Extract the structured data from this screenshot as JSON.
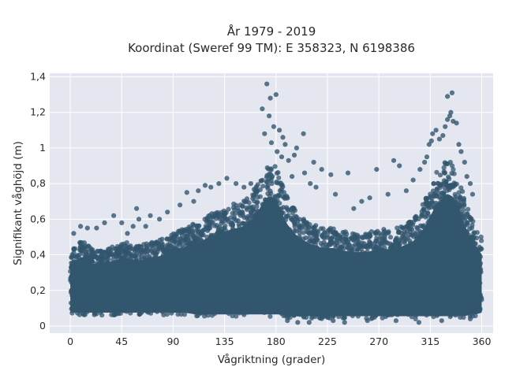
{
  "chart_data": {
    "type": "scatter",
    "title_line1": "År 1979 - 2019",
    "title_line2": "Koordinat (Sweref 99 TM): E 358323, N 6198386",
    "xlabel": "Vågriktning (grader)",
    "ylabel": "Signifikant våghöjd (m)",
    "xlim": [
      -18,
      370
    ],
    "ylim": [
      -0.04,
      1.42
    ],
    "x_ticks": [
      0,
      45,
      90,
      135,
      180,
      225,
      270,
      315,
      360
    ],
    "y_ticks": [
      0,
      0.2,
      0.4,
      0.6,
      0.8,
      1,
      1.2,
      1.4
    ],
    "y_tick_labels": [
      "0",
      "0,2",
      "0,4",
      "0,6",
      "0,8",
      "1",
      "1,2",
      "1,4"
    ],
    "grid": true,
    "background_color": "#e5e7f0",
    "marker_color": "#32566e",
    "envelope": {
      "x": [
        0,
        10,
        20,
        30,
        40,
        50,
        60,
        70,
        80,
        90,
        100,
        110,
        120,
        130,
        140,
        150,
        160,
        165,
        170,
        175,
        180,
        185,
        190,
        200,
        210,
        220,
        230,
        240,
        250,
        260,
        270,
        280,
        290,
        300,
        310,
        315,
        320,
        325,
        330,
        335,
        340,
        345,
        350,
        355,
        360
      ],
      "lower": [
        0.06,
        0.06,
        0.06,
        0.06,
        0.06,
        0.06,
        0.06,
        0.06,
        0.06,
        0.06,
        0.06,
        0.05,
        0.05,
        0.05,
        0.05,
        0.05,
        0.05,
        0.05,
        0.05,
        0.05,
        0.05,
        0.05,
        0.04,
        0.04,
        0.04,
        0.04,
        0.04,
        0.04,
        0.04,
        0.04,
        0.04,
        0.04,
        0.04,
        0.04,
        0.04,
        0.04,
        0.04,
        0.04,
        0.04,
        0.04,
        0.04,
        0.04,
        0.05,
        0.05,
        0.06
      ],
      "upper": [
        0.44,
        0.48,
        0.43,
        0.43,
        0.46,
        0.47,
        0.45,
        0.47,
        0.49,
        0.52,
        0.55,
        0.58,
        0.62,
        0.65,
        0.68,
        0.7,
        0.76,
        0.82,
        0.9,
        0.92,
        0.9,
        0.8,
        0.72,
        0.62,
        0.58,
        0.55,
        0.55,
        0.53,
        0.52,
        0.52,
        0.55,
        0.54,
        0.56,
        0.6,
        0.7,
        0.78,
        0.86,
        0.9,
        0.94,
        0.92,
        0.84,
        0.72,
        0.62,
        0.55,
        0.5
      ]
    },
    "outliers": [
      {
        "x": 172,
        "y": 1.36
      },
      {
        "x": 175,
        "y": 1.28
      },
      {
        "x": 180,
        "y": 1.3
      },
      {
        "x": 168,
        "y": 1.22
      },
      {
        "x": 174,
        "y": 1.18
      },
      {
        "x": 178,
        "y": 1.12
      },
      {
        "x": 183,
        "y": 1.1
      },
      {
        "x": 170,
        "y": 1.08
      },
      {
        "x": 186,
        "y": 1.06
      },
      {
        "x": 176,
        "y": 1.03
      },
      {
        "x": 188,
        "y": 1.02
      },
      {
        "x": 181,
        "y": 0.98
      },
      {
        "x": 185,
        "y": 0.95
      },
      {
        "x": 191,
        "y": 0.93
      },
      {
        "x": 196,
        "y": 0.96
      },
      {
        "x": 198,
        "y": 1.0
      },
      {
        "x": 204,
        "y": 1.08
      },
      {
        "x": 213,
        "y": 0.92
      },
      {
        "x": 205,
        "y": 0.86
      },
      {
        "x": 220,
        "y": 0.88
      },
      {
        "x": 228,
        "y": 0.85
      },
      {
        "x": 243,
        "y": 0.86
      },
      {
        "x": 210,
        "y": 0.8
      },
      {
        "x": 215,
        "y": 0.78
      },
      {
        "x": 194,
        "y": 0.84
      },
      {
        "x": 232,
        "y": 0.74
      },
      {
        "x": 268,
        "y": 0.88
      },
      {
        "x": 283,
        "y": 0.93
      },
      {
        "x": 288,
        "y": 0.9
      },
      {
        "x": 300,
        "y": 0.82
      },
      {
        "x": 306,
        "y": 0.88
      },
      {
        "x": 310,
        "y": 0.92
      },
      {
        "x": 312,
        "y": 0.95
      },
      {
        "x": 314,
        "y": 1.02
      },
      {
        "x": 316,
        "y": 1.04
      },
      {
        "x": 317,
        "y": 1.08
      },
      {
        "x": 320,
        "y": 1.1
      },
      {
        "x": 323,
        "y": 1.05
      },
      {
        "x": 326,
        "y": 1.07
      },
      {
        "x": 328,
        "y": 1.12
      },
      {
        "x": 330,
        "y": 1.16
      },
      {
        "x": 332,
        "y": 1.18
      },
      {
        "x": 333,
        "y": 1.2
      },
      {
        "x": 335,
        "y": 1.15
      },
      {
        "x": 338,
        "y": 1.14
      },
      {
        "x": 340,
        "y": 1.02
      },
      {
        "x": 342,
        "y": 0.98
      },
      {
        "x": 345,
        "y": 0.92
      },
      {
        "x": 330,
        "y": 1.29
      },
      {
        "x": 334,
        "y": 1.31
      },
      {
        "x": 347,
        "y": 0.84
      },
      {
        "x": 352,
        "y": 0.74
      },
      {
        "x": 350,
        "y": 0.8
      },
      {
        "x": 278,
        "y": 0.74
      },
      {
        "x": 294,
        "y": 0.76
      },
      {
        "x": 262,
        "y": 0.72
      },
      {
        "x": 248,
        "y": 0.66
      },
      {
        "x": 255,
        "y": 0.7
      },
      {
        "x": 102,
        "y": 0.75
      },
      {
        "x": 112,
        "y": 0.76
      },
      {
        "x": 118,
        "y": 0.79
      },
      {
        "x": 123,
        "y": 0.78
      },
      {
        "x": 130,
        "y": 0.8
      },
      {
        "x": 137,
        "y": 0.83
      },
      {
        "x": 145,
        "y": 0.8
      },
      {
        "x": 152,
        "y": 0.78
      },
      {
        "x": 158,
        "y": 0.8
      },
      {
        "x": 108,
        "y": 0.7
      },
      {
        "x": 96,
        "y": 0.68
      },
      {
        "x": 85,
        "y": 0.64
      },
      {
        "x": 78,
        "y": 0.6
      },
      {
        "x": 70,
        "y": 0.62
      },
      {
        "x": 60,
        "y": 0.6
      },
      {
        "x": 55,
        "y": 0.56
      },
      {
        "x": 45,
        "y": 0.58
      },
      {
        "x": 38,
        "y": 0.62
      },
      {
        "x": 30,
        "y": 0.58
      },
      {
        "x": 23,
        "y": 0.55
      },
      {
        "x": 15,
        "y": 0.55
      },
      {
        "x": 9,
        "y": 0.56
      },
      {
        "x": 3,
        "y": 0.52
      },
      {
        "x": 58,
        "y": 0.66
      },
      {
        "x": 50,
        "y": 0.52
      },
      {
        "x": 66,
        "y": 0.56
      },
      {
        "x": 199,
        "y": 0.02
      },
      {
        "x": 209,
        "y": 0.02
      },
      {
        "x": 240,
        "y": 0.02
      },
      {
        "x": 305,
        "y": 0.02
      },
      {
        "x": 190,
        "y": 0.03
      },
      {
        "x": 260,
        "y": 0.03
      },
      {
        "x": 325,
        "y": 0.03
      },
      {
        "x": 350,
        "y": 0.04
      },
      {
        "x": 230,
        "y": 0.03
      },
      {
        "x": 285,
        "y": 0.03
      }
    ]
  }
}
